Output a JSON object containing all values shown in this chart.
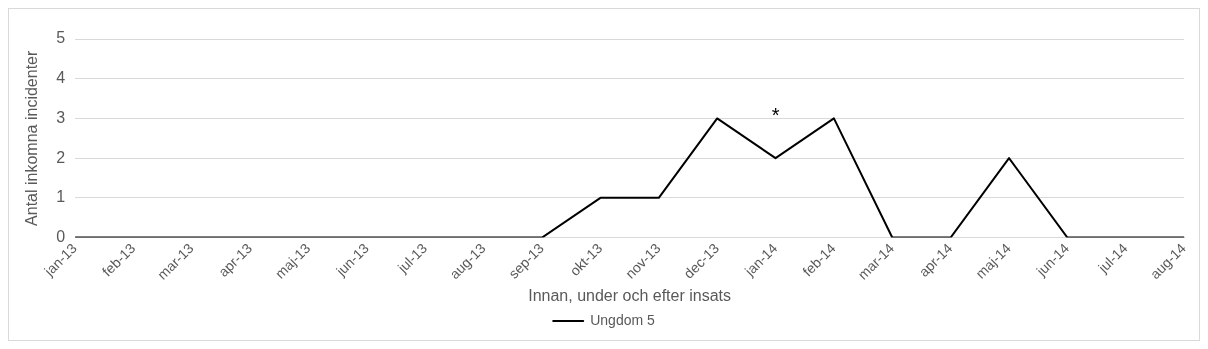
{
  "chart_data": {
    "type": "line",
    "xlabel": "Innan, under och efter insats",
    "ylabel": "Antal inkomna incidenter",
    "categories": [
      "jan-13",
      "feb-13",
      "mar-13",
      "apr-13",
      "maj-13",
      "jun-13",
      "jul-13",
      "aug-13",
      "sep-13",
      "okt-13",
      "nov-13",
      "dec-13",
      "jan-14",
      "feb-14",
      "mar-14",
      "apr-14",
      "maj-14",
      "jun-14",
      "jul-14",
      "aug-14"
    ],
    "series": [
      {
        "name": "Ungdom 5",
        "color": "#000000",
        "values": [
          0,
          0,
          0,
          0,
          0,
          0,
          0,
          0,
          0,
          1,
          1,
          3,
          2,
          3,
          0,
          0,
          2,
          0,
          0,
          0
        ]
      }
    ],
    "ylim": [
      0,
      5
    ],
    "yticks": [
      0,
      1,
      2,
      3,
      4,
      5
    ],
    "grid": "y",
    "legend": "bottom",
    "marker": "none",
    "line_style": "solid",
    "annotations": [
      {
        "text": "*",
        "x": "jan-14",
        "y": 2
      }
    ]
  }
}
